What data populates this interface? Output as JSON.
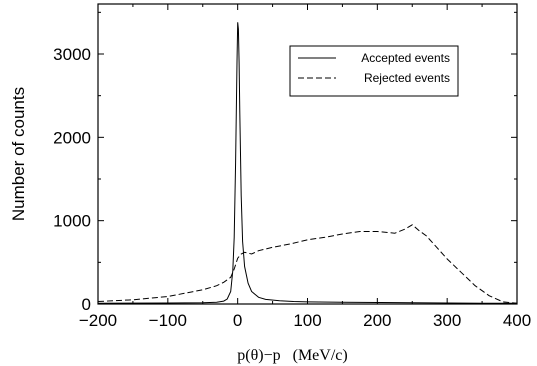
{
  "chart_data": {
    "type": "line",
    "title": "",
    "xlabel": "p(θ)−p   (MeV/c)",
    "ylabel": "Number of counts",
    "xlim": [
      -200,
      400
    ],
    "ylim": [
      0,
      3600
    ],
    "x_ticks": [
      -200,
      -100,
      0,
      100,
      200,
      300,
      400
    ],
    "x_tick_labels": [
      "−200",
      "−100",
      "0",
      "100",
      "200",
      "300",
      "400"
    ],
    "y_ticks": [
      0,
      1000,
      2000,
      3000
    ],
    "y_tick_labels": [
      "0",
      "1000",
      "2000",
      "3000"
    ],
    "grid": false,
    "legend_position": "top-right",
    "series": [
      {
        "name": "Accepted events",
        "style": "solid",
        "color": "#000000",
        "x": [
          -200,
          -100,
          -50,
          -30,
          -20,
          -15,
          -10,
          -7,
          -5,
          -3,
          -1,
          0,
          1,
          2,
          3,
          5,
          7,
          10,
          15,
          20,
          30,
          40,
          60,
          80,
          100,
          150,
          200,
          250,
          300,
          350,
          400
        ],
        "y": [
          10,
          12,
          15,
          20,
          35,
          60,
          150,
          400,
          800,
          1700,
          2900,
          3380,
          3300,
          2900,
          2300,
          1300,
          750,
          450,
          250,
          150,
          80,
          55,
          40,
          30,
          25,
          20,
          18,
          15,
          12,
          10,
          8
        ]
      },
      {
        "name": "Rejected events",
        "style": "dashed",
        "color": "#000000",
        "x": [
          -200,
          -150,
          -100,
          -50,
          -30,
          -20,
          -10,
          -5,
          0,
          5,
          10,
          20,
          30,
          50,
          75,
          100,
          125,
          150,
          175,
          200,
          225,
          240,
          250,
          260,
          270,
          285,
          300,
          320,
          340,
          360,
          380,
          400
        ],
        "y": [
          30,
          50,
          90,
          170,
          220,
          260,
          320,
          420,
          550,
          600,
          620,
          600,
          640,
          680,
          720,
          770,
          800,
          840,
          870,
          870,
          850,
          900,
          950,
          880,
          820,
          680,
          540,
          380,
          220,
          100,
          25,
          10
        ]
      }
    ]
  }
}
